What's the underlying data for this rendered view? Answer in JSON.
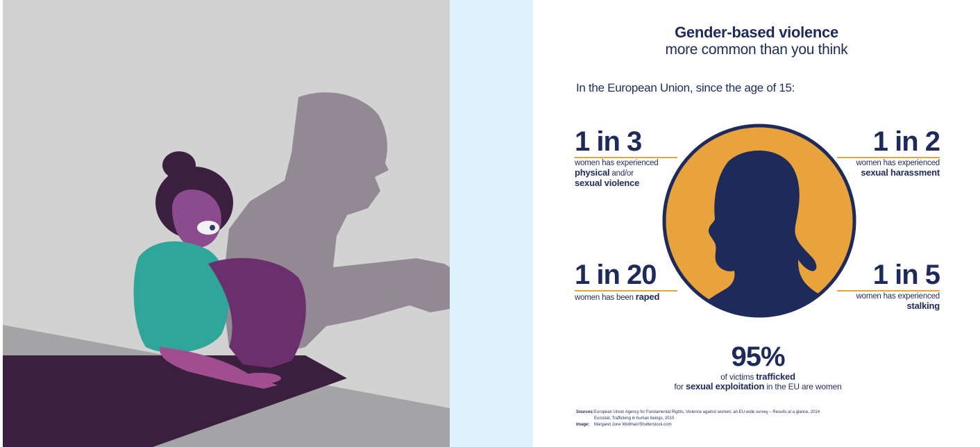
{
  "infographic": {
    "title": "Gender-based violence",
    "subtitle": "more common than you think",
    "intro": "In the European Union, since the age of 15:",
    "stats": [
      {
        "value": "1 in 3",
        "line1": "women has experienced",
        "bold1": "physical",
        "mid": " and/or",
        "bold2": "sexual violence"
      },
      {
        "value": "1 in 2",
        "line1": "women has experienced",
        "bold1": "sexual harassment"
      },
      {
        "value": "1 in 20",
        "pre": "women has been ",
        "bold1": "raped"
      },
      {
        "value": "1 in 5",
        "line1": "women has experienced",
        "bold1": "stalking"
      }
    ],
    "trafficking": {
      "value": "95%",
      "pre1": "of victims ",
      "bold1": "trafficked",
      "pre2": "for ",
      "bold2": "sexual exploitation",
      "post2": " in the EU are women"
    },
    "sources": {
      "label": "Sources:",
      "line1": "European Union Agency for Fundamental Rights, Violence against women: an EU-wide survey – Results at a glance, 2014",
      "line2": "Eurostat, Trafficking in human beings, 2015",
      "image_label": "Image:",
      "image_credit": "Margaret Jone Wollman/Shutterstock.com"
    }
  },
  "colors": {
    "navy": "#1e2b5a",
    "accent": "#e8a33d",
    "strip": "#dff2fb"
  }
}
